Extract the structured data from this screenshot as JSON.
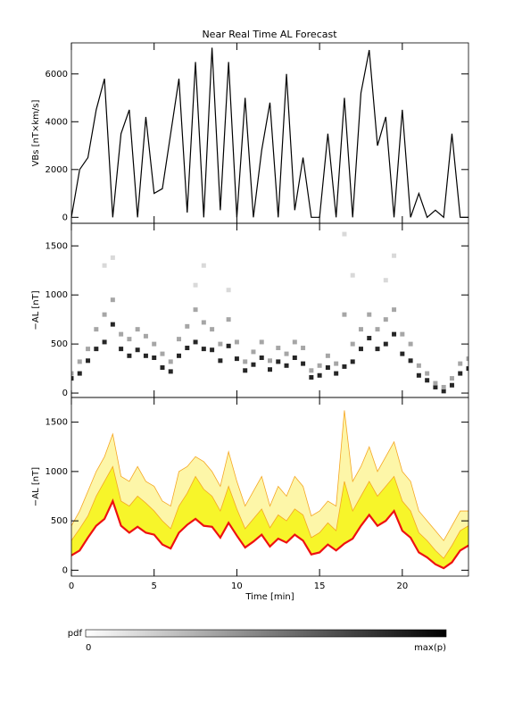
{
  "chart_data": [
    {
      "type": "line",
      "title": "Near Real Time AL Forecast",
      "y_label": "VBs [nT×km/s]",
      "xlim": [
        0,
        24
      ],
      "ylim": [
        -250,
        7300
      ],
      "yticks": [
        0,
        2000,
        4000,
        6000
      ],
      "color": "#000000",
      "x": [
        0,
        0.5,
        1,
        1.5,
        2,
        2.5,
        3,
        3.5,
        4,
        4.5,
        5,
        5.5,
        6,
        6.5,
        7,
        7.5,
        8,
        8.5,
        9,
        9.5,
        10,
        10.5,
        11,
        11.5,
        12,
        12.5,
        13,
        13.5,
        14,
        14.5,
        15,
        15.5,
        16,
        16.5,
        17,
        17.5,
        18,
        18.5,
        19,
        19.5,
        20,
        20.5,
        21,
        21.5,
        22,
        22.5,
        23,
        23.5,
        24
      ],
      "values": [
        0,
        2000,
        2500,
        4500,
        5800,
        0,
        3500,
        4500,
        0,
        4200,
        1000,
        1200,
        3500,
        5800,
        200,
        6500,
        0,
        7100,
        300,
        6500,
        0,
        5000,
        0,
        2800,
        4800,
        0,
        6000,
        300,
        2500,
        0,
        0,
        3500,
        0,
        5000,
        0,
        5200,
        7000,
        3000,
        4200,
        0,
        4500,
        0,
        1000,
        0,
        300,
        0,
        3500,
        0,
        0
      ]
    },
    {
      "type": "heatmap",
      "y_label": "−AL [nT]",
      "xlim": [
        0,
        24
      ],
      "ylim": [
        -45,
        1730
      ],
      "yticks": [
        0,
        500,
        1000,
        1500
      ],
      "colorbar": {
        "label": "pdf",
        "ticks": [
          0,
          {
            "value": 1,
            "label": "max(p)"
          }
        ]
      },
      "cells": [
        [
          0,
          150,
          0.85
        ],
        [
          0,
          200,
          0.35
        ],
        [
          0.5,
          200,
          0.85
        ],
        [
          0.5,
          320,
          0.35
        ],
        [
          1,
          330,
          0.85
        ],
        [
          1,
          450,
          0.35
        ],
        [
          1.5,
          450,
          0.85
        ],
        [
          1.5,
          650,
          0.35
        ],
        [
          2,
          520,
          0.85
        ],
        [
          2,
          800,
          0.35
        ],
        [
          2.5,
          700,
          0.85
        ],
        [
          2.5,
          950,
          0.35
        ],
        [
          3,
          450,
          0.85
        ],
        [
          3,
          600,
          0.35
        ],
        [
          3.5,
          380,
          0.85
        ],
        [
          3.5,
          550,
          0.35
        ],
        [
          4,
          440,
          0.85
        ],
        [
          4,
          650,
          0.35
        ],
        [
          4.5,
          380,
          0.85
        ],
        [
          4.5,
          580,
          0.35
        ],
        [
          5,
          360,
          0.85
        ],
        [
          5,
          500,
          0.35
        ],
        [
          5.5,
          260,
          0.85
        ],
        [
          5.5,
          400,
          0.35
        ],
        [
          6,
          220,
          0.85
        ],
        [
          6,
          320,
          0.35
        ],
        [
          6.5,
          380,
          0.85
        ],
        [
          6.5,
          550,
          0.35
        ],
        [
          7,
          460,
          0.85
        ],
        [
          7,
          680,
          0.35
        ],
        [
          7.5,
          520,
          0.85
        ],
        [
          7.5,
          850,
          0.35
        ],
        [
          8,
          450,
          0.85
        ],
        [
          8,
          720,
          0.35
        ],
        [
          8.5,
          440,
          0.85
        ],
        [
          8.5,
          650,
          0.35
        ],
        [
          9,
          330,
          0.85
        ],
        [
          9,
          500,
          0.35
        ],
        [
          9.5,
          480,
          0.85
        ],
        [
          9.5,
          750,
          0.35
        ],
        [
          10,
          350,
          0.85
        ],
        [
          10,
          520,
          0.35
        ],
        [
          10.5,
          230,
          0.85
        ],
        [
          10.5,
          320,
          0.35
        ],
        [
          11,
          290,
          0.85
        ],
        [
          11,
          420,
          0.35
        ],
        [
          11.5,
          360,
          0.85
        ],
        [
          11.5,
          520,
          0.35
        ],
        [
          12,
          240,
          0.85
        ],
        [
          12,
          330,
          0.35
        ],
        [
          12.5,
          320,
          0.85
        ],
        [
          12.5,
          460,
          0.35
        ],
        [
          13,
          280,
          0.85
        ],
        [
          13,
          400,
          0.35
        ],
        [
          13.5,
          360,
          0.85
        ],
        [
          13.5,
          520,
          0.35
        ],
        [
          14,
          300,
          0.85
        ],
        [
          14,
          460,
          0.35
        ],
        [
          14.5,
          160,
          0.85
        ],
        [
          14.5,
          230,
          0.35
        ],
        [
          15,
          180,
          0.85
        ],
        [
          15,
          280,
          0.35
        ],
        [
          15.5,
          260,
          0.85
        ],
        [
          15.5,
          380,
          0.35
        ],
        [
          16,
          200,
          0.85
        ],
        [
          16,
          300,
          0.35
        ],
        [
          16.5,
          270,
          0.85
        ],
        [
          16.5,
          800,
          0.35
        ],
        [
          17,
          320,
          0.85
        ],
        [
          17,
          500,
          0.35
        ],
        [
          17.5,
          450,
          0.85
        ],
        [
          17.5,
          650,
          0.35
        ],
        [
          18,
          560,
          0.85
        ],
        [
          18,
          800,
          0.35
        ],
        [
          18.5,
          450,
          0.85
        ],
        [
          18.5,
          650,
          0.35
        ],
        [
          19,
          500,
          0.85
        ],
        [
          19,
          750,
          0.35
        ],
        [
          19.5,
          600,
          0.85
        ],
        [
          19.5,
          850,
          0.35
        ],
        [
          20,
          400,
          0.85
        ],
        [
          20,
          600,
          0.35
        ],
        [
          20.5,
          330,
          0.85
        ],
        [
          20.5,
          500,
          0.35
        ],
        [
          21,
          180,
          0.85
        ],
        [
          21,
          280,
          0.35
        ],
        [
          21.5,
          130,
          0.85
        ],
        [
          21.5,
          200,
          0.35
        ],
        [
          22,
          60,
          0.85
        ],
        [
          22,
          100,
          0.35
        ],
        [
          22.5,
          20,
          0.85
        ],
        [
          22.5,
          60,
          0.35
        ],
        [
          23,
          80,
          0.85
        ],
        [
          23,
          150,
          0.35
        ],
        [
          23.5,
          200,
          0.85
        ],
        [
          23.5,
          300,
          0.35
        ],
        [
          24,
          250,
          0.85
        ],
        [
          24,
          350,
          0.35
        ],
        [
          2.5,
          1380,
          0.15
        ],
        [
          2,
          1300,
          0.15
        ],
        [
          7.5,
          1100,
          0.15
        ],
        [
          8,
          1300,
          0.15
        ],
        [
          9.5,
          1050,
          0.15
        ],
        [
          16.5,
          1620,
          0.15
        ],
        [
          17,
          1200,
          0.15
        ],
        [
          19.5,
          1400,
          0.15
        ],
        [
          19,
          1150,
          0.15
        ]
      ]
    },
    {
      "type": "area",
      "y_label": "−AL [nT]",
      "x_label": "Time [min]",
      "xlim": [
        0,
        24
      ],
      "ylim": [
        -60,
        1750
      ],
      "yticks": [
        0,
        500,
        1000,
        1500
      ],
      "xticks": [
        0,
        5,
        10,
        15,
        20
      ],
      "x": [
        0,
        0.5,
        1,
        1.5,
        2,
        2.5,
        3,
        3.5,
        4,
        4.5,
        5,
        5.5,
        6,
        6.5,
        7,
        7.5,
        8,
        8.5,
        9,
        9.5,
        10,
        10.5,
        11,
        11.5,
        12,
        12.5,
        13,
        13.5,
        14,
        14.5,
        15,
        15.5,
        16,
        16.5,
        17,
        17.5,
        18,
        18.5,
        19,
        19.5,
        20,
        20.5,
        21,
        21.5,
        22,
        22.5,
        23,
        23.5,
        24
      ],
      "series": [
        {
          "color": "#f5a623",
          "fill": "#fdf6a8",
          "values": [
            450,
            600,
            800,
            1000,
            1150,
            1380,
            950,
            900,
            1050,
            900,
            850,
            700,
            650,
            1000,
            1050,
            1150,
            1100,
            1000,
            850,
            1200,
            900,
            650,
            800,
            950,
            650,
            850,
            750,
            950,
            850,
            550,
            600,
            700,
            650,
            1620,
            900,
            1050,
            1250,
            1000,
            1150,
            1300,
            1000,
            900,
            600,
            500,
            400,
            300,
            450,
            600,
            600
          ]
        },
        {
          "color": "#f5a623",
          "fill": "#f7f52a",
          "values": [
            300,
            420,
            550,
            750,
            900,
            1050,
            700,
            650,
            750,
            680,
            600,
            500,
            420,
            650,
            780,
            950,
            820,
            750,
            600,
            850,
            620,
            420,
            520,
            620,
            430,
            560,
            500,
            620,
            560,
            330,
            380,
            480,
            400,
            900,
            600,
            750,
            900,
            750,
            850,
            950,
            700,
            600,
            380,
            300,
            200,
            120,
            250,
            400,
            450
          ]
        },
        {
          "color": "#ee1111",
          "values": [
            150,
            200,
            330,
            450,
            520,
            700,
            450,
            380,
            440,
            380,
            360,
            260,
            220,
            380,
            460,
            520,
            450,
            440,
            330,
            480,
            350,
            230,
            290,
            360,
            240,
            320,
            280,
            360,
            300,
            160,
            180,
            260,
            200,
            270,
            320,
            450,
            560,
            450,
            500,
            600,
            400,
            330,
            180,
            130,
            60,
            20,
            80,
            200,
            250
          ]
        }
      ]
    }
  ]
}
